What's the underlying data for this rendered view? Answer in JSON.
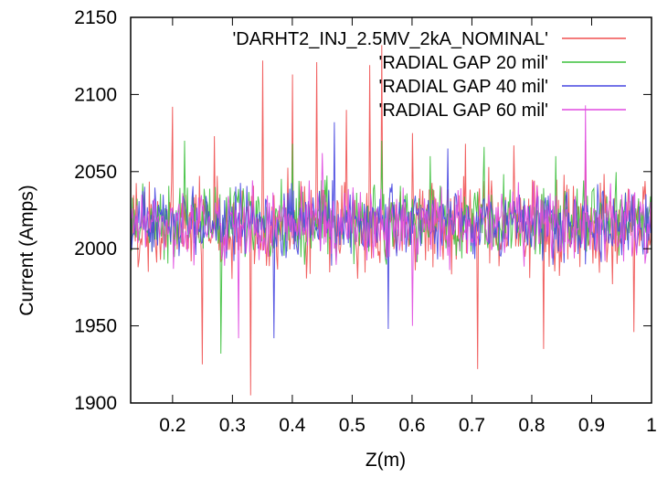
{
  "chart_data": {
    "type": "line",
    "xlabel": "Z(m)",
    "ylabel": "Current (Amps)",
    "xlim": [
      0.13,
      1.0
    ],
    "ylim": [
      1900,
      2150
    ],
    "x_ticks": [
      "0.2",
      "0.3",
      "0.4",
      "0.5",
      "0.6",
      "0.7",
      "0.8",
      "0.9",
      "1"
    ],
    "x_tick_values": [
      0.2,
      0.3,
      0.4,
      0.5,
      0.6,
      0.7,
      0.8,
      0.9,
      1.0
    ],
    "y_ticks": [
      "1900",
      "1950",
      "2000",
      "2050",
      "2100",
      "2150"
    ],
    "y_tick_values": [
      1900,
      1950,
      2000,
      2050,
      2100,
      2150
    ],
    "grid": false,
    "legend_position": "top-right",
    "series": [
      {
        "name": "'DARHT2_INJ_2.5MV_2kA_NOMINAL'",
        "color": "#f05050",
        "mean": 2015,
        "spread": 28,
        "x": [
          0.16,
          0.2,
          0.25,
          0.27,
          0.33,
          0.35,
          0.4,
          0.44,
          0.49,
          0.53,
          0.55,
          0.6,
          0.69,
          0.71,
          0.77,
          0.82,
          0.89,
          0.97
        ],
        "y": [
          1985,
          2092,
          1925,
          2073,
          1905,
          2122,
          2113,
          2121,
          2090,
          2119,
          2132,
          2075,
          2068,
          1922,
          2067,
          1935,
          2070,
          1946
        ]
      },
      {
        "name": "'RADIAL GAP 20 mil'",
        "color": "#3cc03c",
        "mean": 2018,
        "spread": 22,
        "x": [
          0.22,
          0.28,
          0.4,
          0.55,
          0.63,
          0.72,
          0.84
        ],
        "y": [
          2070,
          1932,
          2068,
          2070,
          2060,
          2066,
          2060
        ]
      },
      {
        "name": "'RADIAL GAP 40 mil'",
        "color": "#4646e0",
        "mean": 2017,
        "spread": 20,
        "x": [
          0.37,
          0.47,
          0.56,
          0.66
        ],
        "y": [
          1942,
          2082,
          1948,
          2065
        ]
      },
      {
        "name": "'RADIAL GAP 60 mil'",
        "color": "#e04ae0",
        "mean": 2016,
        "spread": 20,
        "x": [
          0.31,
          0.45,
          0.6,
          0.89
        ],
        "y": [
          1942,
          2062,
          1950,
          2093
        ]
      }
    ]
  }
}
